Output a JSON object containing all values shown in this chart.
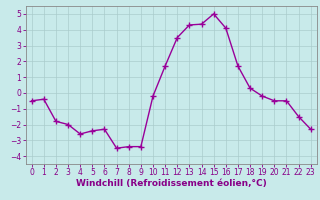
{
  "x": [
    0,
    1,
    2,
    3,
    4,
    5,
    6,
    7,
    8,
    9,
    10,
    11,
    12,
    13,
    14,
    15,
    16,
    17,
    18,
    19,
    20,
    21,
    22,
    23
  ],
  "y": [
    -0.5,
    -0.4,
    -1.8,
    -2.0,
    -2.6,
    -2.4,
    -2.3,
    -3.5,
    -3.4,
    -3.4,
    -0.2,
    1.7,
    3.5,
    4.3,
    4.35,
    5.0,
    4.1,
    1.7,
    0.3,
    -0.2,
    -0.5,
    -0.5,
    -1.5,
    -2.3
  ],
  "line_color": "#990099",
  "marker": "+",
  "marker_size": 4,
  "bg_color": "#c8eaea",
  "grid_color": "#aacccc",
  "xlabel": "Windchill (Refroidissement éolien,°C)",
  "xlim": [
    -0.5,
    23.5
  ],
  "ylim": [
    -4.5,
    5.5
  ],
  "yticks": [
    -4,
    -3,
    -2,
    -1,
    0,
    1,
    2,
    3,
    4,
    5
  ],
  "xticks": [
    0,
    1,
    2,
    3,
    4,
    5,
    6,
    7,
    8,
    9,
    10,
    11,
    12,
    13,
    14,
    15,
    16,
    17,
    18,
    19,
    20,
    21,
    22,
    23
  ],
  "label_color": "#880088",
  "tick_color": "#880088",
  "spine_color": "#888888",
  "linewidth": 1.0,
  "xlabel_fontsize": 6.5,
  "tick_fontsize": 5.5,
  "marker_edge_width": 1.0
}
